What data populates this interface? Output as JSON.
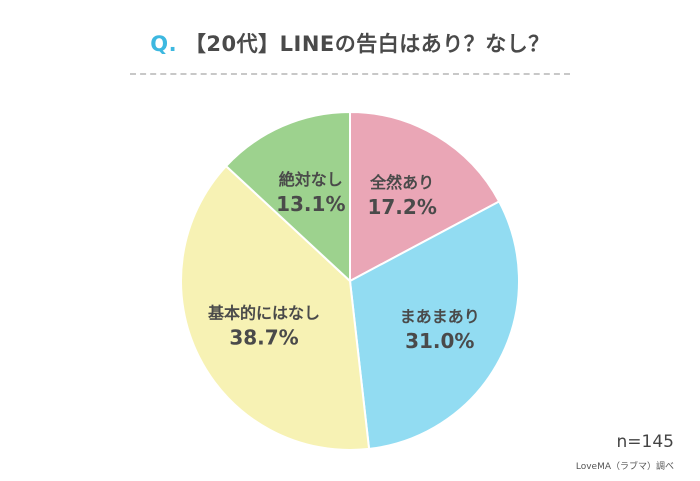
{
  "title": {
    "prefix": "Q.",
    "text": "【20代】LINEの告白はあり？なし？"
  },
  "chart_data": {
    "type": "pie",
    "categories": [
      "全然あり",
      "まあまあり",
      "基本的にはなし",
      "絶対なし"
    ],
    "values": [
      17.2,
      31.0,
      38.7,
      13.1
    ],
    "value_labels": [
      "17.2%",
      "31.0%",
      "38.7%",
      "13.1%"
    ],
    "colors": [
      "#eaa6b6",
      "#92dcf2",
      "#f7f2b4",
      "#9dd28e"
    ],
    "start": "12 o'clock, clockwise"
  },
  "sample_size": "n=145",
  "source_credit": "LoveMA（ラブマ）調べ"
}
